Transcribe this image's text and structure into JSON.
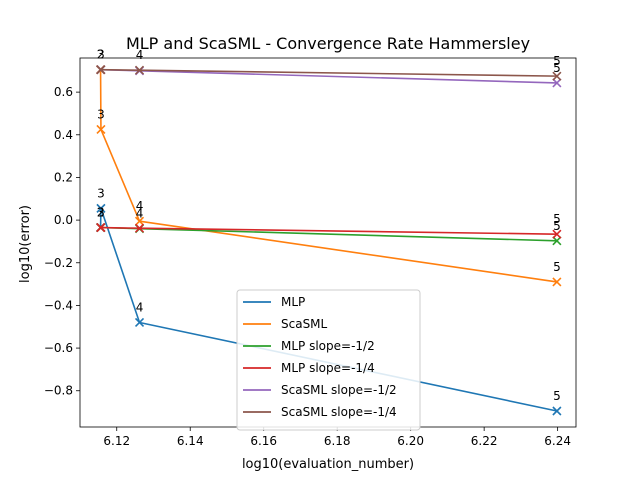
{
  "chart_data": {
    "type": "line",
    "title": "MLP and ScaSML - Convergence Rate Hammersley",
    "xlabel": "log10(evaluation_number)",
    "ylabel": "log10(error)",
    "xlim": [
      6.11,
      6.245
    ],
    "ylim": [
      -0.97,
      0.76
    ],
    "xticks": [
      6.12,
      6.14,
      6.16,
      6.18,
      6.2,
      6.22,
      6.24
    ],
    "xtick_labels": [
      "6.12",
      "6.14",
      "6.16",
      "6.18",
      "6.20",
      "6.22",
      "6.24"
    ],
    "yticks": [
      -0.8,
      -0.6,
      -0.4,
      -0.2,
      0.0,
      0.2,
      0.4,
      0.6
    ],
    "ytick_labels": [
      "−0.8",
      "−0.6",
      "−0.4",
      "−0.2",
      "0.0",
      "0.2",
      "0.4",
      "0.6"
    ],
    "grid": false,
    "legend_position": "lower center",
    "series": [
      {
        "name": "MLP",
        "color": "#1f77b4",
        "x": [
          6.1156,
          6.1156,
          6.1157,
          6.1262,
          6.2398
        ],
        "y": [
          -0.035,
          -0.035,
          0.055,
          -0.48,
          -0.895
        ],
        "point_labels": [
          "2",
          "2",
          "3",
          "4",
          "5"
        ]
      },
      {
        "name": "ScaSML",
        "color": "#ff7f0e",
        "x": [
          6.1156,
          6.1156,
          6.1157,
          6.1262,
          6.2398
        ],
        "y": [
          0.705,
          0.705,
          0.425,
          -0.005,
          -0.29
        ],
        "point_labels": [
          "2",
          "2",
          "3",
          "4",
          "5"
        ]
      },
      {
        "name": "MLP slope=-1/2",
        "color": "#2ca02c",
        "x": [
          6.1156,
          6.1157,
          6.1262,
          6.2398
        ],
        "y": [
          -0.035,
          -0.035,
          -0.04,
          -0.097
        ],
        "point_labels": []
      },
      {
        "name": "MLP slope=-1/4",
        "color": "#d62728",
        "x": [
          6.1156,
          6.1157,
          6.1262,
          6.2398
        ],
        "y": [
          -0.035,
          -0.035,
          -0.038,
          -0.066
        ],
        "point_labels": []
      },
      {
        "name": "ScaSML slope=-1/2",
        "color": "#9467bd",
        "x": [
          6.1156,
          6.1157,
          6.1262,
          6.2398
        ],
        "y": [
          0.705,
          0.705,
          0.7,
          0.643
        ],
        "point_labels": []
      },
      {
        "name": "ScaSML slope=-1/4",
        "color": "#8c564b",
        "x": [
          6.1156,
          6.1157,
          6.1262,
          6.2398
        ],
        "y": [
          0.705,
          0.705,
          0.703,
          0.675
        ],
        "point_labels": []
      }
    ],
    "annotations": [
      {
        "text": "2",
        "x": 6.1156,
        "y": 0.705
      },
      {
        "text": "3",
        "x": 6.1157,
        "y": 0.705
      },
      {
        "text": "3",
        "x": 6.1157,
        "y": 0.425
      },
      {
        "text": "4",
        "x": 6.1262,
        "y": 0.703
      },
      {
        "text": "5",
        "x": 6.2398,
        "y": 0.675
      },
      {
        "text": "5",
        "x": 6.2398,
        "y": 0.643
      },
      {
        "text": "3",
        "x": 6.1157,
        "y": 0.055
      },
      {
        "text": "2",
        "x": 6.1156,
        "y": -0.035
      },
      {
        "text": "3",
        "x": 6.1157,
        "y": -0.035
      },
      {
        "text": "4",
        "x": 6.1262,
        "y": -0.005
      },
      {
        "text": "4",
        "x": 6.1262,
        "y": -0.04
      },
      {
        "text": "5",
        "x": 6.2398,
        "y": -0.066
      },
      {
        "text": "5",
        "x": 6.2398,
        "y": -0.097
      },
      {
        "text": "5",
        "x": 6.2398,
        "y": -0.29
      },
      {
        "text": "4",
        "x": 6.1262,
        "y": -0.48
      },
      {
        "text": "5",
        "x": 6.2398,
        "y": -0.895
      }
    ]
  }
}
